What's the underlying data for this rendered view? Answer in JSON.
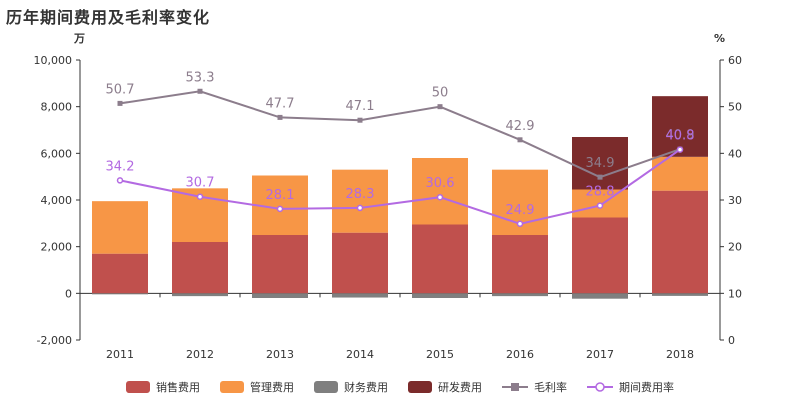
{
  "chart_data": {
    "type": "bar",
    "title": "历年期间费用及毛利率变化",
    "y_left_unit": "万",
    "y_right_unit": "%",
    "ylim_left": [
      -2000,
      10000
    ],
    "ylim_right": [
      0,
      60
    ],
    "left_ticks": [
      "-2,000",
      "0",
      "2,000",
      "4,000",
      "6,000",
      "8,000",
      "10,000"
    ],
    "right_ticks": [
      "0",
      "10",
      "20",
      "30",
      "40",
      "50",
      "60"
    ],
    "categories": [
      "2011",
      "2012",
      "2013",
      "2014",
      "2015",
      "2016",
      "2017",
      "2018"
    ],
    "bar_series": [
      {
        "name": "销售费用",
        "color": "#c0504d",
        "values": [
          1700,
          2200,
          2500,
          2600,
          2950,
          2500,
          3250,
          4400
        ]
      },
      {
        "name": "管理费用",
        "color": "#f79646",
        "values": [
          2250,
          2300,
          2550,
          2700,
          2850,
          2800,
          1200,
          1450
        ]
      },
      {
        "name": "财务费用",
        "color": "#7f7f7f",
        "values": [
          -30,
          -120,
          -200,
          -180,
          -200,
          -120,
          -230,
          -110
        ]
      },
      {
        "name": "研发费用",
        "color": "#7b2b2b",
        "values": [
          0,
          0,
          0,
          0,
          0,
          0,
          2250,
          2600
        ]
      }
    ],
    "line_series": [
      {
        "name": "毛利率",
        "color": "#8c7d8c",
        "marker": "square",
        "values": [
          50.7,
          53.3,
          47.7,
          47.1,
          50,
          42.9,
          34.9,
          40.9
        ],
        "labels": [
          "50.7",
          "53.3",
          "47.7",
          "47.1",
          "50",
          "42.9",
          "34.9",
          "40.9"
        ]
      },
      {
        "name": "期间费用率",
        "color": "#b36ae2",
        "marker": "circle",
        "values": [
          34.2,
          30.7,
          28.1,
          28.3,
          30.6,
          24.9,
          28.8,
          40.8
        ],
        "labels": [
          "34.2",
          "30.7",
          "28.1",
          "28.3",
          "30.6",
          "24.9",
          "28.8",
          "40.8"
        ]
      }
    ],
    "legend_position": "bottom"
  }
}
